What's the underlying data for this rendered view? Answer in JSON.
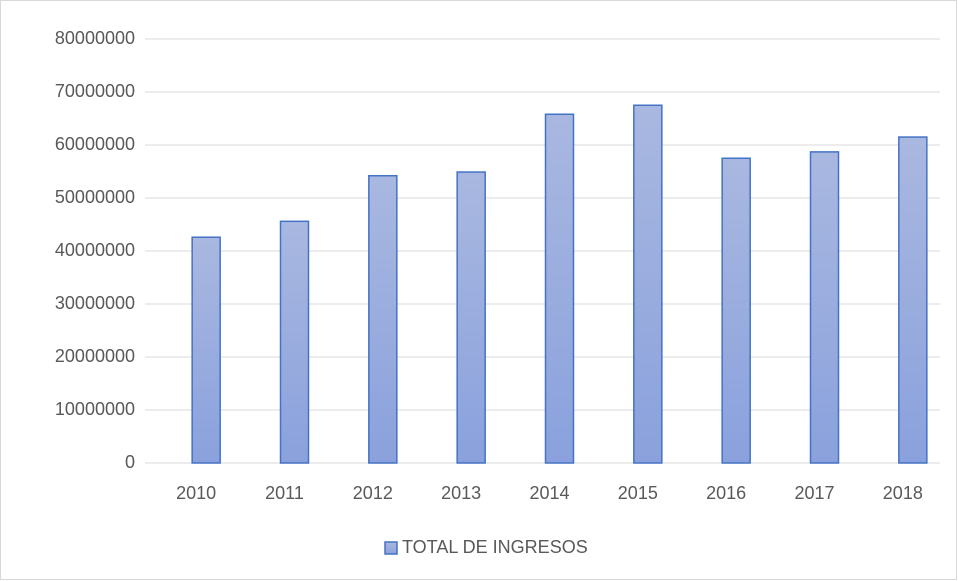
{
  "chart_data": {
    "type": "bar",
    "categories": [
      "2010",
      "2011",
      "2012",
      "2013",
      "2014",
      "2015",
      "2016",
      "2017",
      "2018"
    ],
    "series": [
      {
        "name": "TOTAL DE INGRESOS",
        "color": "#4472c4",
        "values": [
          42600000,
          45600000,
          54200000,
          54900000,
          65800000,
          67500000,
          57500000,
          58700000,
          61500000
        ]
      }
    ],
    "ylim": [
      0,
      80000000
    ],
    "yticks": [
      0,
      10000000,
      20000000,
      30000000,
      40000000,
      50000000,
      60000000,
      70000000,
      80000000
    ],
    "grid": true,
    "legend": "bottom"
  }
}
